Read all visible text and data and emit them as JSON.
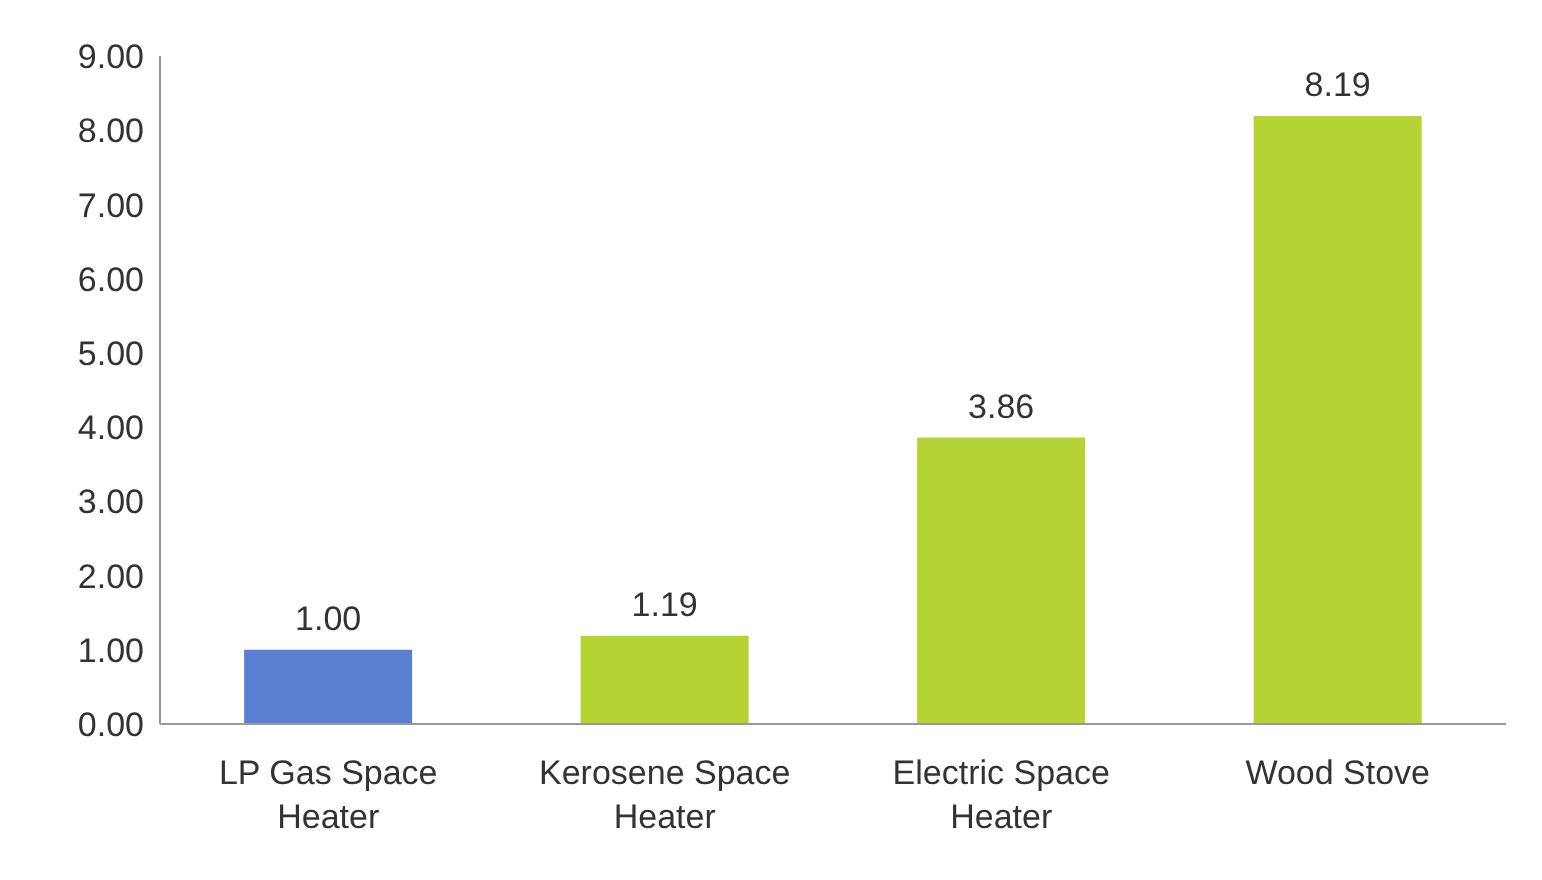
{
  "chart_data": {
    "type": "bar",
    "categories": [
      "LP Gas Space Heater",
      "Kerosene Space Heater",
      "Electric Space Heater",
      "Wood Stove"
    ],
    "values": [
      1.0,
      1.19,
      3.86,
      8.19
    ],
    "colors": [
      "#5b7fd0",
      "#b5d334",
      "#b5d334",
      "#b5d334"
    ],
    "value_labels": [
      "1.00",
      "1.19",
      "3.86",
      "8.19"
    ],
    "ylim": [
      0,
      9
    ],
    "yticks": [
      {
        "value": 0,
        "label": "0.00"
      },
      {
        "value": 1,
        "label": "1.00"
      },
      {
        "value": 2,
        "label": "2.00"
      },
      {
        "value": 3,
        "label": "3.00"
      },
      {
        "value": 4,
        "label": "4.00"
      },
      {
        "value": 5,
        "label": "5.00"
      },
      {
        "value": 6,
        "label": "6.00"
      },
      {
        "value": 7,
        "label": "7.00"
      },
      {
        "value": 8,
        "label": "8.00"
      },
      {
        "value": 9,
        "label": "9.00"
      }
    ]
  }
}
